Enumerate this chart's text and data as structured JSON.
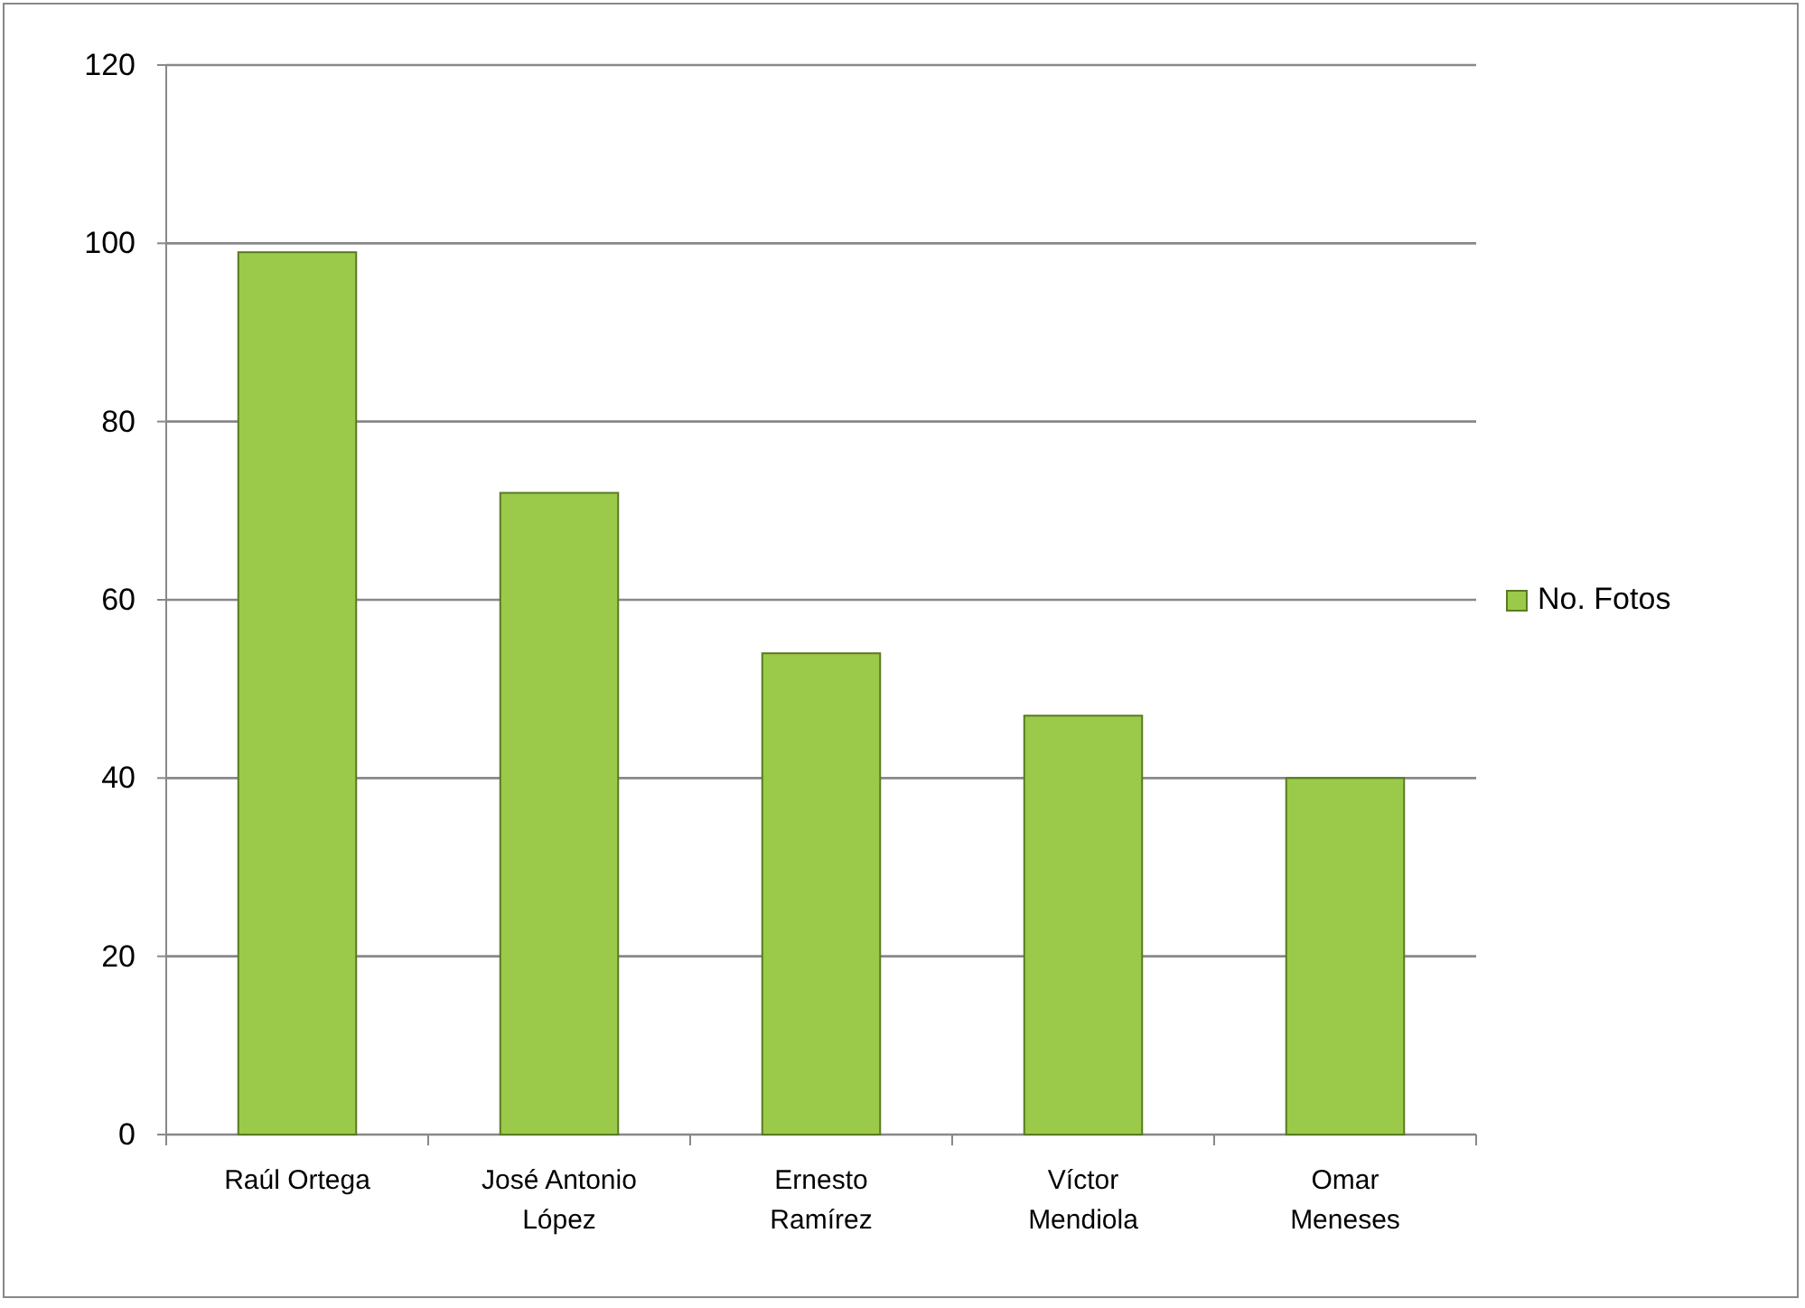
{
  "chart_data": {
    "type": "bar",
    "categories": [
      "Raúl Ortega",
      "José Antonio López",
      "Ernesto Ramírez",
      "Víctor Mendiola",
      "Omar Meneses"
    ],
    "series": [
      {
        "name": "No. Fotos",
        "color": "#9bc94a",
        "values": [
          99,
          72,
          54,
          47,
          40
        ]
      }
    ],
    "ylim": [
      0,
      120
    ],
    "yticks": [
      0,
      20,
      40,
      60,
      80,
      100,
      120
    ],
    "grid": "y",
    "legend": "right"
  }
}
